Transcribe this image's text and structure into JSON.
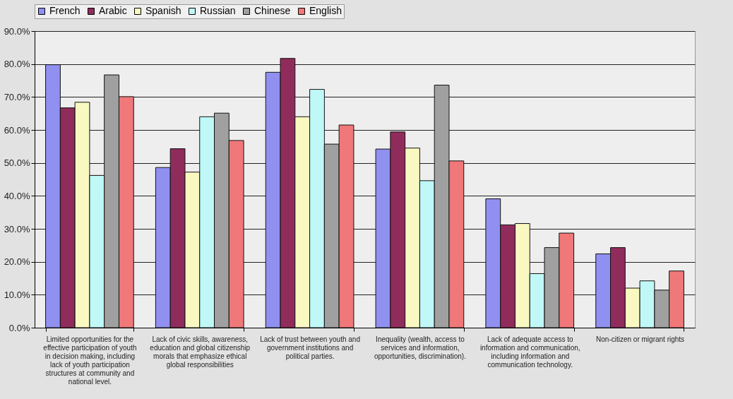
{
  "chart_data": {
    "type": "bar",
    "categories": [
      "Limited opportunities for the effective participation of youth in decision making, including lack of youth participation structures at community and national level.",
      "Lack of civic skills, awareness, education and global citizenship morals that emphasize ethical global responsibilities",
      "Lack of trust between youth and government institutions and political parties.",
      "Inequality (wealth, access to services and information, opportunities, discrimination).",
      "Lack of adequate access to information and communication, including information and communication technology.",
      "Non-citizen or migrant rights"
    ],
    "series": [
      {
        "name": "French",
        "color": "#9090f0",
        "values": [
          79.8,
          48.6,
          77.5,
          54.2,
          39.1,
          22.4
        ]
      },
      {
        "name": "Arabic",
        "color": "#902c5c",
        "values": [
          66.7,
          54.3,
          81.7,
          59.4,
          31.2,
          24.3
        ]
      },
      {
        "name": "Spanish",
        "color": "#f8f8c0",
        "values": [
          68.4,
          47.2,
          64.0,
          54.5,
          31.6,
          12.0
        ]
      },
      {
        "name": "Russian",
        "color": "#c0f8f8",
        "values": [
          46.2,
          64.0,
          72.3,
          44.6,
          16.4,
          14.2
        ]
      },
      {
        "name": "Chinese",
        "color": "#a0a0a0",
        "values": [
          76.7,
          65.1,
          55.7,
          73.6,
          24.3,
          11.4
        ]
      },
      {
        "name": "English",
        "color": "#f07878",
        "values": [
          70.1,
          56.8,
          61.5,
          50.6,
          28.7,
          17.2
        ]
      }
    ],
    "ylim": [
      0,
      90
    ],
    "yticks": [
      {
        "value": 0,
        "label": "0.0%"
      },
      {
        "value": 10,
        "label": "10.0%"
      },
      {
        "value": 20,
        "label": "20.0%"
      },
      {
        "value": 30,
        "label": "30.0%"
      },
      {
        "value": 40,
        "label": "40.0%"
      },
      {
        "value": 50,
        "label": "50.0%"
      },
      {
        "value": 60,
        "label": "60.0%"
      },
      {
        "value": 70,
        "label": "70.0%"
      },
      {
        "value": 80,
        "label": "80.0%"
      },
      {
        "value": 90,
        "label": "90.0%"
      }
    ],
    "grid": "y",
    "legend": "top"
  }
}
